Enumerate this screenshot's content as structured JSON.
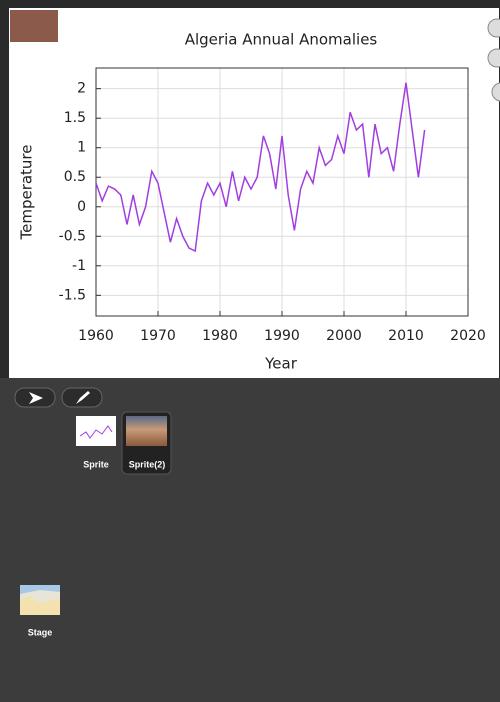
{
  "chart_data": {
    "type": "line",
    "title": "Algeria Annual Anomalies",
    "x_label": "Year",
    "y_label": "Temperature",
    "x": [
      1960,
      1961,
      1962,
      1963,
      1964,
      1965,
      1966,
      1967,
      1968,
      1969,
      1970,
      1971,
      1972,
      1973,
      1974,
      1975,
      1976,
      1977,
      1978,
      1979,
      1980,
      1981,
      1982,
      1983,
      1984,
      1985,
      1986,
      1987,
      1988,
      1989,
      1990,
      1991,
      1992,
      1993,
      1994,
      1995,
      1996,
      1997,
      1998,
      1999,
      2000,
      2001,
      2002,
      2003,
      2004,
      2005,
      2006,
      2007,
      2008,
      2009,
      2010,
      2011,
      2012,
      2013
    ],
    "values": [
      0.4,
      0.1,
      0.35,
      0.3,
      0.2,
      -0.3,
      0.2,
      -0.3,
      0.0,
      0.6,
      0.4,
      -0.1,
      -0.6,
      -0.2,
      -0.5,
      -0.7,
      -0.75,
      0.1,
      0.4,
      0.2,
      0.4,
      0.0,
      0.6,
      0.1,
      0.5,
      0.3,
      0.5,
      1.2,
      0.9,
      0.3,
      1.2,
      0.2,
      -0.4,
      0.3,
      0.6,
      0.4,
      1.0,
      0.7,
      0.8,
      1.2,
      0.9,
      1.6,
      1.3,
      1.4,
      0.5,
      1.4,
      0.9,
      1.0,
      0.6,
      1.4,
      2.1,
      1.3,
      0.5,
      1.3
    ],
    "color": "#a23ee0",
    "xlim": [
      1960,
      2020
    ],
    "xticks": [
      1960,
      1970,
      1980,
      1990,
      2000,
      2010,
      2020
    ],
    "ylim": [
      -1.85,
      2.35
    ],
    "yticks": [
      -1.5,
      -1,
      -0.5,
      0,
      0.5,
      1,
      1.5,
      2
    ],
    "grid": true
  },
  "sprites": [
    {
      "label": "Sprite"
    },
    {
      "label": "Sprite(2)"
    }
  ],
  "stage": {
    "label": "Stage"
  }
}
